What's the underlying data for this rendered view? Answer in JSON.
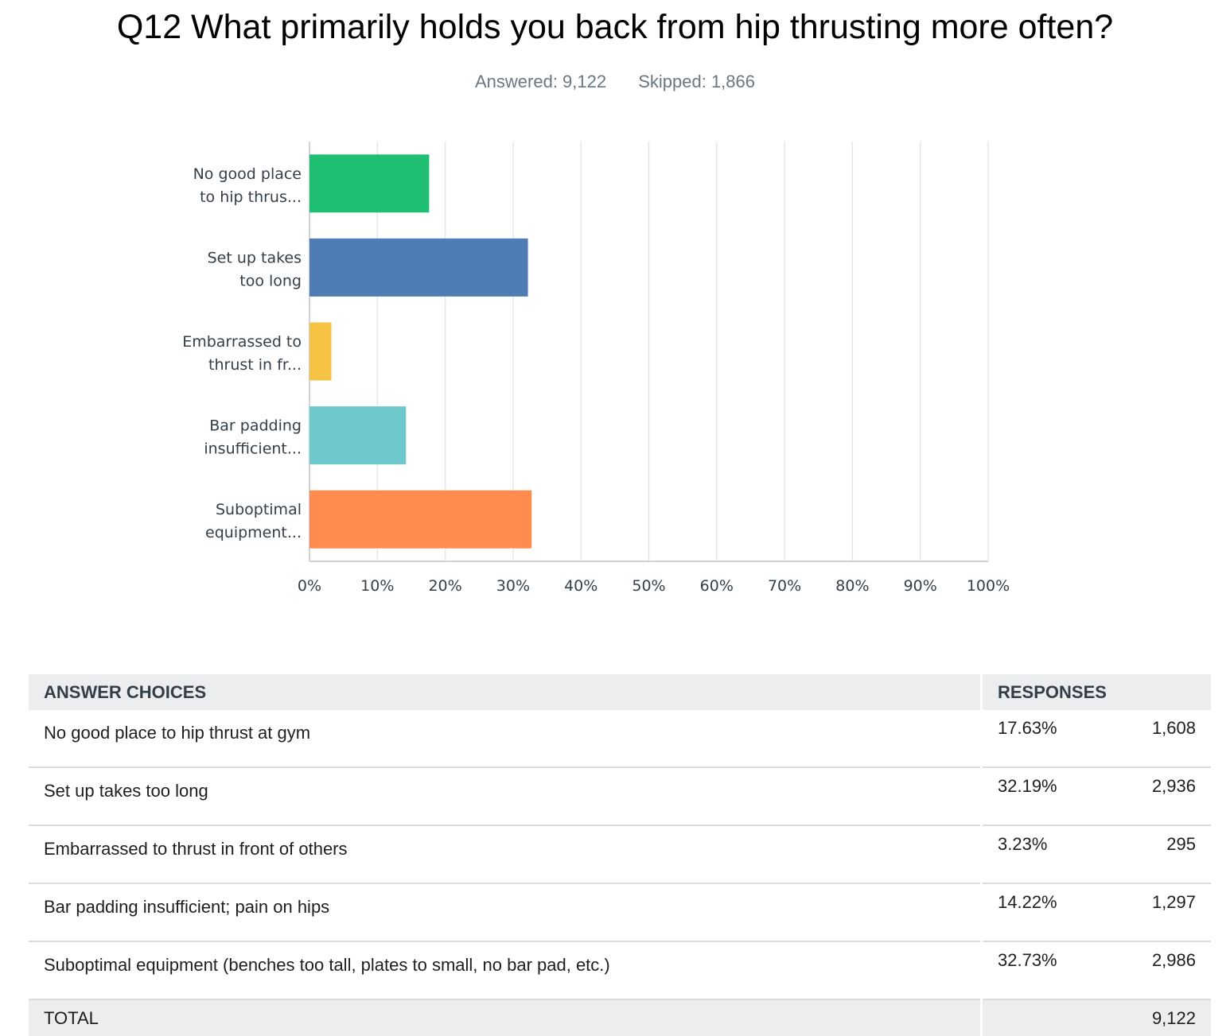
{
  "page": {
    "title": "Q12 What primarily holds you back from hip thrusting more often?",
    "answered": "Answered: 9,122",
    "skipped": "Skipped: 1,866"
  },
  "chart_data": {
    "type": "bar",
    "orientation": "horizontal",
    "categories": [
      [
        "No good place",
        "to hip thrus..."
      ],
      [
        "Set up takes",
        "too long"
      ],
      [
        "Embarrassed to",
        "thrust in fr..."
      ],
      [
        "Bar padding",
        "insufficient..."
      ],
      [
        "Suboptimal",
        "equipment..."
      ]
    ],
    "values": [
      17.63,
      32.19,
      3.23,
      14.22,
      32.73
    ],
    "colors": [
      "#1fbf73",
      "#507cb6",
      "#f6c244",
      "#6ec8cb",
      "#ff8b4f"
    ],
    "xlim": [
      0,
      100
    ],
    "ticks": [
      "0%",
      "10%",
      "20%",
      "30%",
      "40%",
      "50%",
      "60%",
      "70%",
      "80%",
      "90%",
      "100%"
    ],
    "grid": true
  },
  "table": {
    "headers": {
      "answer": "ANSWER CHOICES",
      "responses": "RESPONSES"
    },
    "rows": [
      {
        "answer": "No good place to hip thrust at gym",
        "pct": "17.63%",
        "count": "1,608"
      },
      {
        "answer": "Set up takes too long",
        "pct": "32.19%",
        "count": "2,936"
      },
      {
        "answer": "Embarrassed to thrust in front of others",
        "pct": "3.23%",
        "count": "295"
      },
      {
        "answer": "Bar padding insufficient; pain on hips",
        "pct": "14.22%",
        "count": "1,297"
      },
      {
        "answer": "Suboptimal equipment (benches too tall, plates to small, no bar pad, etc.)",
        "pct": "32.73%",
        "count": "2,986"
      }
    ],
    "total": {
      "label": "TOTAL",
      "count": "9,122"
    }
  }
}
